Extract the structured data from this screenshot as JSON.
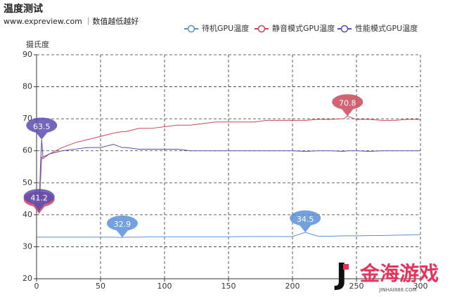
{
  "chart_data": {
    "type": "line",
    "title": "温度测试",
    "subtitle": "www.expreview.com ｜数值越低越好",
    "y_label": "摄氏度",
    "x": [
      0,
      2,
      3,
      4,
      5,
      10,
      20,
      30,
      40,
      50,
      60,
      67,
      70,
      80,
      90,
      100,
      110,
      120,
      130,
      140,
      150,
      160,
      170,
      180,
      190,
      200,
      210,
      220,
      230,
      240,
      243,
      250,
      260,
      270,
      280,
      290,
      300
    ],
    "series": [
      {
        "name": "待机GPU温度",
        "color": "#5b8fd9",
        "values": [
          33.0,
          33.0,
          33.0,
          33.0,
          33.0,
          33.0,
          33.0,
          33.0,
          33.0,
          33.0,
          33.0,
          32.9,
          33.0,
          33.0,
          33.1,
          33.1,
          33.1,
          33.1,
          33.1,
          33.1,
          33.1,
          33.2,
          33.2,
          33.2,
          33.2,
          33.2,
          34.5,
          33.3,
          33.3,
          33.4,
          33.4,
          33.4,
          33.5,
          33.5,
          33.6,
          33.7,
          33.8
        ]
      },
      {
        "name": "静音模式GPU温度",
        "color": "#c9485b",
        "values": [
          45,
          40.4,
          50,
          58,
          57.5,
          59,
          61,
          62.5,
          63.5,
          64.5,
          65.5,
          66,
          66,
          67,
          67,
          67.5,
          68,
          68,
          68.5,
          69,
          69,
          69,
          69,
          69.5,
          69.5,
          69.5,
          69.5,
          69.8,
          69.8,
          70,
          70.8,
          69.8,
          69.8,
          69.5,
          69.5,
          69.8,
          69.8
        ]
      },
      {
        "name": "性能模式GPU温度",
        "color": "#5a4bb0",
        "values": [
          44,
          41.2,
          55,
          63.5,
          58,
          59,
          60,
          60.5,
          61,
          61,
          62,
          61,
          61,
          60.5,
          60.5,
          60.5,
          60.5,
          60,
          60,
          60,
          60,
          60,
          60,
          60,
          60,
          60,
          59.8,
          60,
          60,
          59.8,
          60,
          60,
          59.8,
          60,
          60,
          60,
          60
        ]
      }
    ],
    "xlim": [
      0,
      300
    ],
    "xticks": [
      0,
      50,
      100,
      150,
      200,
      250,
      300
    ],
    "ylim": [
      20,
      90
    ],
    "yticks": [
      20,
      30,
      40,
      50,
      60,
      70,
      80,
      90
    ],
    "grid": true,
    "legend": "top-right"
  },
  "watermark": {
    "text": "金海游戏",
    "url": "JINHAI888.COM"
  }
}
